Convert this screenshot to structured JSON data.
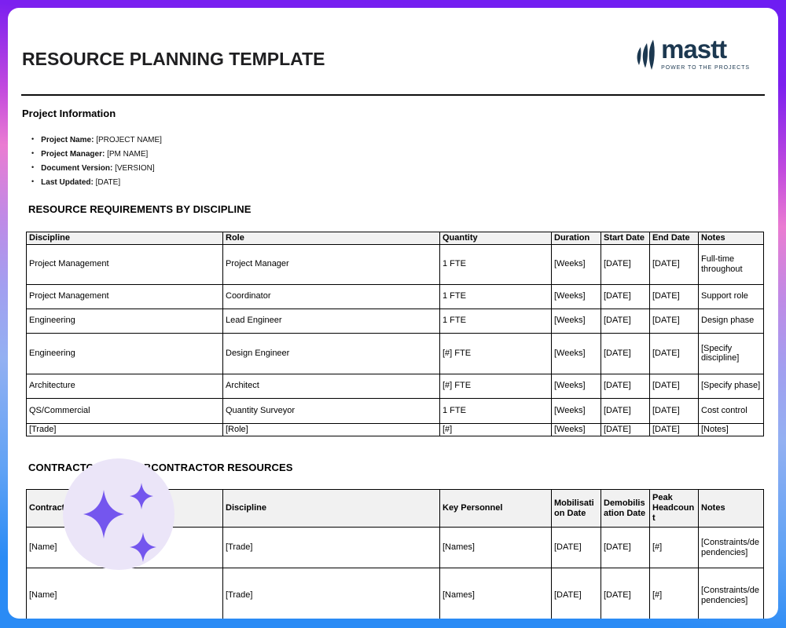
{
  "page": {
    "title": "RESOURCE PLANNING TEMPLATE",
    "logo": {
      "brand": "mastt",
      "tagline": "POWER TO THE PROJECTS",
      "color": "#1c3850"
    },
    "colors": {
      "frame_top": "#6d1df2",
      "frame_pink": "#ea7cd2",
      "frame_periwinkle": "#93b0f2",
      "frame_bottom": "#2a8bf5",
      "table_header_bg": "#f1f1f1",
      "sparkle_circle": "#ebe5f8",
      "sparkle_star": "#7456ee"
    }
  },
  "project_information": {
    "heading": "Project Information",
    "items": [
      {
        "label": "Project Name:",
        "value": "[PROJECT NAME]"
      },
      {
        "label": "Project Manager:",
        "value": "[PM NAME]"
      },
      {
        "label": "Document Version:",
        "value": "[VERSION]"
      },
      {
        "label": "Last Updated:",
        "value": "[DATE]"
      }
    ]
  },
  "resource_table": {
    "heading": "RESOURCE REQUIREMENTS BY DISCIPLINE",
    "columns": [
      "Discipline",
      "Role",
      "Quantity",
      "Duration",
      "Start Date",
      "End Date",
      "Notes"
    ],
    "rows": [
      [
        "Project Management",
        "Project Manager",
        "1 FTE",
        "[Weeks]",
        "[DATE]",
        "[DATE]",
        "Full-time throughout"
      ],
      [
        "Project Management",
        "Coordinator",
        "1 FTE",
        "[Weeks]",
        "[DATE]",
        "[DATE]",
        "Support role"
      ],
      [
        "Engineering",
        "Lead Engineer",
        "1 FTE",
        "[Weeks]",
        "[DATE]",
        "[DATE]",
        "Design phase"
      ],
      [
        "Engineering",
        "Design Engineer",
        "[#] FTE",
        "[Weeks]",
        "[DATE]",
        "[DATE]",
        "[Specify discipline]"
      ],
      [
        "Architecture",
        "Architect",
        "[#] FTE",
        "[Weeks]",
        "[DATE]",
        "[DATE]",
        "[Specify phase]"
      ],
      [
        "QS/Commercial",
        "Quantity Surveyor",
        "1 FTE",
        "[Weeks]",
        "[DATE]",
        "[DATE]",
        "Cost control"
      ],
      [
        "[Trade]",
        "[Role]",
        "[#]",
        "[Weeks]",
        "[DATE]",
        "[DATE]",
        "[Notes]"
      ]
    ]
  },
  "contractor_table": {
    "heading": "CONTRACTOR AND SUBCONTRACTOR RESOURCES",
    "columns": [
      "Contractor",
      "Discipline",
      "Key Personnel",
      "Mobilisation Date",
      "Demobilisation Date",
      "Peak Headcount",
      "Notes"
    ],
    "rows": [
      [
        "[Name]",
        "[Trade]",
        "[Names]",
        "[DATE]",
        "[DATE]",
        "[#]",
        "[Constraints/dependencies]"
      ],
      [
        "[Name]",
        "[Trade]",
        "[Names]",
        "[DATE]",
        "[DATE]",
        "[#]",
        "[Constraints/dependencies]"
      ]
    ]
  }
}
